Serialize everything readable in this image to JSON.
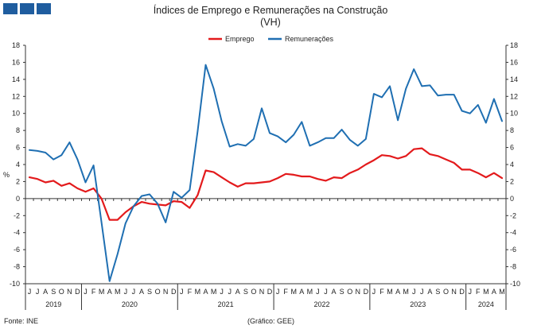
{
  "header": {
    "logo_name": "institutional-logo"
  },
  "chart_data": {
    "type": "line",
    "title": "Índices de Emprego e Remunerações na Construção",
    "subtitle": "(VH)",
    "ylabel": "%",
    "ylim": [
      -10,
      18
    ],
    "yticks": [
      -10,
      -8,
      -6,
      -4,
      -2,
      0,
      2,
      4,
      6,
      8,
      10,
      12,
      14,
      16,
      18
    ],
    "grid": false,
    "legend_position": "top-center",
    "month_letters": [
      "J",
      "J",
      "A",
      "S",
      "O",
      "N",
      "D",
      "J",
      "F",
      "M",
      "A",
      "M",
      "J",
      "J",
      "A",
      "S",
      "O",
      "N",
      "D",
      "J",
      "F",
      "M",
      "A",
      "M",
      "J",
      "J",
      "A",
      "S",
      "O",
      "N",
      "D",
      "J",
      "F",
      "M",
      "A",
      "M",
      "J",
      "J",
      "A",
      "S",
      "O",
      "N",
      "D",
      "J",
      "F",
      "M",
      "A",
      "M",
      "J",
      "J",
      "A",
      "S",
      "O",
      "N",
      "D",
      "J",
      "F",
      "M",
      "A",
      "M"
    ],
    "years": [
      {
        "label": "2019",
        "start": 0,
        "end": 6
      },
      {
        "label": "2020",
        "start": 7,
        "end": 18
      },
      {
        "label": "2021",
        "start": 19,
        "end": 30
      },
      {
        "label": "2022",
        "start": 31,
        "end": 42
      },
      {
        "label": "2023",
        "start": 43,
        "end": 54
      },
      {
        "label": "2024",
        "start": 55,
        "end": 59
      }
    ],
    "series": [
      {
        "name": "Emprego",
        "color": "#e31a1c",
        "values": [
          2.5,
          2.3,
          1.9,
          2.1,
          1.5,
          1.8,
          1.2,
          0.8,
          1.2,
          0.0,
          -2.5,
          -2.5,
          -1.6,
          -0.9,
          -0.4,
          -0.6,
          -0.7,
          -0.8,
          -0.3,
          -0.4,
          -1.1,
          0.4,
          3.3,
          3.1,
          2.5,
          1.9,
          1.4,
          1.8,
          1.8,
          1.9,
          2.0,
          2.4,
          2.9,
          2.8,
          2.6,
          2.6,
          2.3,
          2.1,
          2.5,
          2.4,
          3.0,
          3.4,
          4.0,
          4.5,
          5.1,
          5.0,
          4.7,
          5.0,
          5.8,
          5.9,
          5.2,
          5.0,
          4.6,
          4.2,
          3.4,
          3.4,
          3.0,
          2.5,
          3.0,
          2.4
        ]
      },
      {
        "name": "Remunerações",
        "color": "#1f6fb2",
        "values": [
          5.7,
          5.6,
          5.4,
          4.6,
          5.1,
          6.6,
          4.6,
          1.9,
          3.9,
          -2.8,
          -9.7,
          -6.5,
          -2.9,
          -0.9,
          0.3,
          0.5,
          -0.6,
          -2.8,
          0.8,
          0.1,
          1.0,
          7.9,
          15.7,
          12.9,
          9.1,
          6.1,
          6.4,
          6.2,
          7.0,
          10.6,
          7.7,
          7.3,
          6.6,
          7.5,
          9.0,
          6.2,
          6.6,
          7.1,
          7.1,
          8.1,
          6.9,
          6.2,
          7.0,
          12.3,
          11.9,
          13.2,
          9.2,
          12.9,
          15.2,
          13.2,
          13.3,
          12.1,
          12.2,
          12.2,
          10.3,
          10.0,
          11.0,
          8.9,
          11.7,
          9.1
        ]
      }
    ]
  },
  "footer": {
    "source": "Fonte: INE",
    "credit": "(Gráfico: GEE)"
  }
}
